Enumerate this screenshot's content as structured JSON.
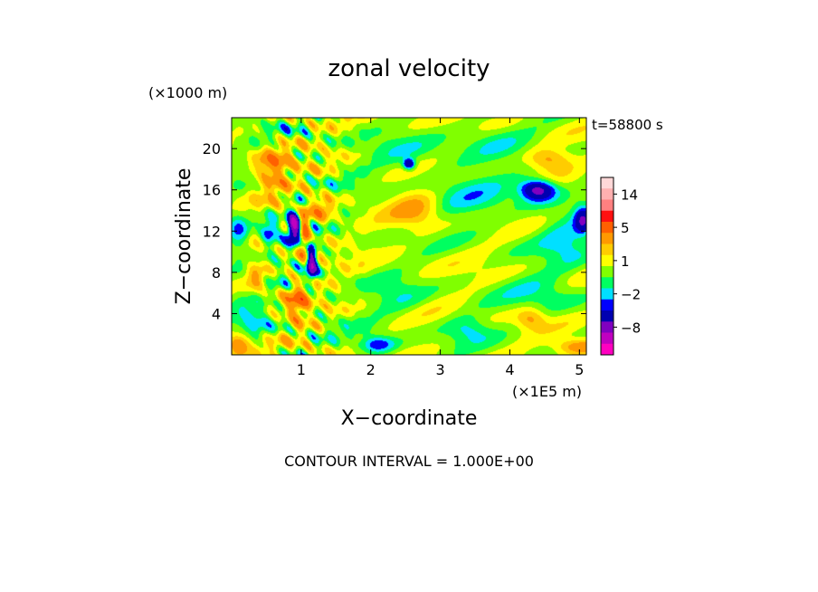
{
  "chart_data": {
    "type": "heatmap",
    "title": "zonal velocity",
    "time_label": "t=58800 s",
    "xlabel": "X−coordinate",
    "ylabel": "Z−coordinate",
    "x_unit": "(×1E5 m)",
    "y_unit": "(×1000 m)",
    "xlim": [
      0,
      5.1
    ],
    "ylim": [
      0,
      23
    ],
    "x_ticks": [
      1,
      2,
      3,
      4,
      5
    ],
    "y_ticks": [
      4,
      8,
      12,
      16,
      20
    ],
    "contour_interval_text": "CONTOUR INTERVAL = 1.000E+00",
    "colorbar": {
      "labels": [
        "14",
        "5",
        "1",
        "−2",
        "−8"
      ],
      "label_levels": [
        14,
        5,
        1,
        -2,
        -8
      ],
      "levels": [
        20,
        14,
        11,
        8,
        5,
        3,
        2,
        1,
        0,
        -1,
        -2,
        -3,
        -5,
        -8,
        -11,
        -14
      ],
      "colors": [
        "#ffd8d8",
        "#ffb0b0",
        "#ff8080",
        "#ff1010",
        "#ff6000",
        "#ff9900",
        "#ffcc00",
        "#ffff00",
        "#80ff00",
        "#00ff60",
        "#00e0ff",
        "#0000ff",
        "#0000b0",
        "#8000c0",
        "#c000c0",
        "#ff00c0"
      ]
    },
    "field_features": [
      {
        "x": 0.9,
        "z": 12.5,
        "sx": 0.09,
        "sz": 1.6,
        "u": -9
      },
      {
        "x": 0.55,
        "z": 12.0,
        "sx": 0.12,
        "sz": 1.2,
        "u": -4
      },
      {
        "x": 1.15,
        "z": 9.0,
        "sx": 0.07,
        "sz": 1.8,
        "u": -8
      },
      {
        "x": 1.05,
        "z": 12.0,
        "sx": 0.08,
        "sz": 2.0,
        "u": 6
      },
      {
        "x": 0.6,
        "z": 18.0,
        "sx": 0.25,
        "sz": 2.0,
        "u": 4
      },
      {
        "x": 1.3,
        "z": 14.0,
        "sx": 0.15,
        "sz": 1.5,
        "u": 3
      },
      {
        "x": 0.95,
        "z": 5.0,
        "sx": 0.15,
        "sz": 2.0,
        "u": 4
      },
      {
        "x": 0.35,
        "z": 7.5,
        "sx": 0.15,
        "sz": 1.5,
        "u": 3
      },
      {
        "x": 0.1,
        "z": 1.0,
        "sx": 0.15,
        "sz": 1.0,
        "u": 4
      },
      {
        "x": 0.1,
        "z": 11.5,
        "sx": 0.15,
        "sz": 2.0,
        "u": -3
      },
      {
        "x": 0.3,
        "z": 3.5,
        "sx": 0.25,
        "sz": 2.0,
        "u": -2
      },
      {
        "x": 4.4,
        "z": 16.0,
        "sx": 0.25,
        "sz": 1.0,
        "u": -7
      },
      {
        "x": 5.05,
        "z": 13.0,
        "sx": 0.12,
        "sz": 1.3,
        "u": -5
      },
      {
        "x": 4.8,
        "z": 11.0,
        "sx": 0.35,
        "sz": 2.5,
        "u": -2
      },
      {
        "x": 4.55,
        "z": 19.0,
        "sx": 0.3,
        "sz": 1.0,
        "u": 3
      },
      {
        "x": 5.0,
        "z": 0.8,
        "sx": 0.35,
        "sz": 0.8,
        "u": 4
      },
      {
        "x": 2.1,
        "z": 1.0,
        "sx": 0.25,
        "sz": 0.8,
        "u": -4
      },
      {
        "x": 3.4,
        "z": 2.5,
        "sx": 0.3,
        "sz": 1.2,
        "u": -2
      },
      {
        "x": 4.5,
        "z": 6.0,
        "sx": 0.5,
        "sz": 2.0,
        "u": -1.5
      },
      {
        "x": 2.4,
        "z": 5.5,
        "sx": 0.4,
        "sz": 1.5,
        "u": -1.5
      },
      {
        "x": 3.5,
        "z": 15.5,
        "sx": 0.7,
        "sz": 3.0,
        "u": -1.5
      },
      {
        "x": 2.5,
        "z": 19.5,
        "sx": 0.6,
        "sz": 1.5,
        "u": -1.2
      },
      {
        "x": 2.65,
        "z": 14.0,
        "sx": 0.35,
        "sz": 2.0,
        "u": 2.5
      },
      {
        "x": 2.55,
        "z": 18.5,
        "sx": 0.08,
        "sz": 0.5,
        "u": -6
      },
      {
        "x": 3.7,
        "z": 21.0,
        "sx": 0.6,
        "sz": 1.5,
        "u": -1.2
      },
      {
        "x": 4.3,
        "z": 3.5,
        "sx": 0.2,
        "sz": 1.0,
        "u": 2.5
      }
    ]
  }
}
